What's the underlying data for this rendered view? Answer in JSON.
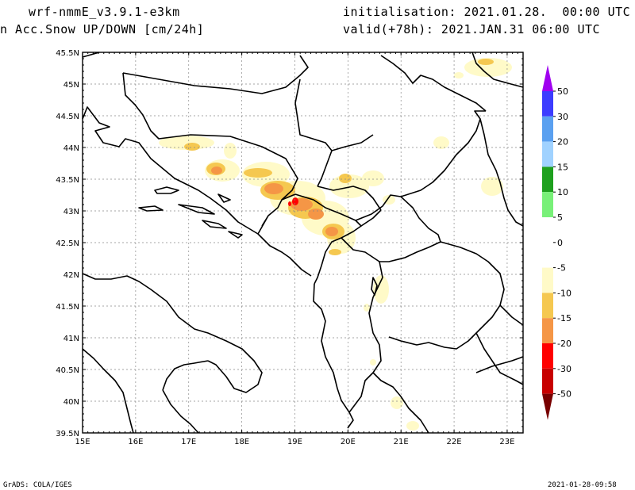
{
  "header": {
    "model": "wrf-nmmE_v3.9.1-e3km",
    "field": "n Acc.Snow UP/DOWN [cm/24h]",
    "init": "initialisation: 2021.01.28.  00:00 UTC",
    "valid": "valid(+78h): 2021.JAN.31 06:00 UTC"
  },
  "footer": {
    "credit": "GrADS: COLA/IGES",
    "timestamp": "2021-01-28-09:58"
  },
  "map": {
    "lat_labels": [
      "45.5N",
      "45N",
      "44.5N",
      "44N",
      "43.5N",
      "43N",
      "42.5N",
      "42N",
      "41.5N",
      "41N",
      "40.5N",
      "40N",
      "39.5N"
    ],
    "lon_labels": [
      "15E",
      "16E",
      "17E",
      "18E",
      "19E",
      "20E",
      "21E",
      "22E",
      "23E"
    ],
    "lat_range": [
      39.5,
      45.5
    ],
    "lon_range": [
      15,
      23.3
    ],
    "grid": "dotted"
  },
  "colorbar": {
    "labels": [
      "50",
      "30",
      "20",
      "15",
      "10",
      "5",
      "0",
      "-5",
      "-10",
      "-15",
      "-20",
      "-30",
      "-50"
    ],
    "colors": {
      "purple": "#a000f0",
      "blue": "#3c3cff",
      "mid_blue": "#5aa0f0",
      "light_blue": "#a0d2ff",
      "dark_green": "#1ea01e",
      "light_green": "#78f078",
      "white": "#ffffff",
      "pale_yellow": "#fffac8",
      "yellow": "#f5c850",
      "orange": "#f59646",
      "red": "#ff0000",
      "dark_red": "#c80000",
      "maroon": "#780000"
    }
  }
}
